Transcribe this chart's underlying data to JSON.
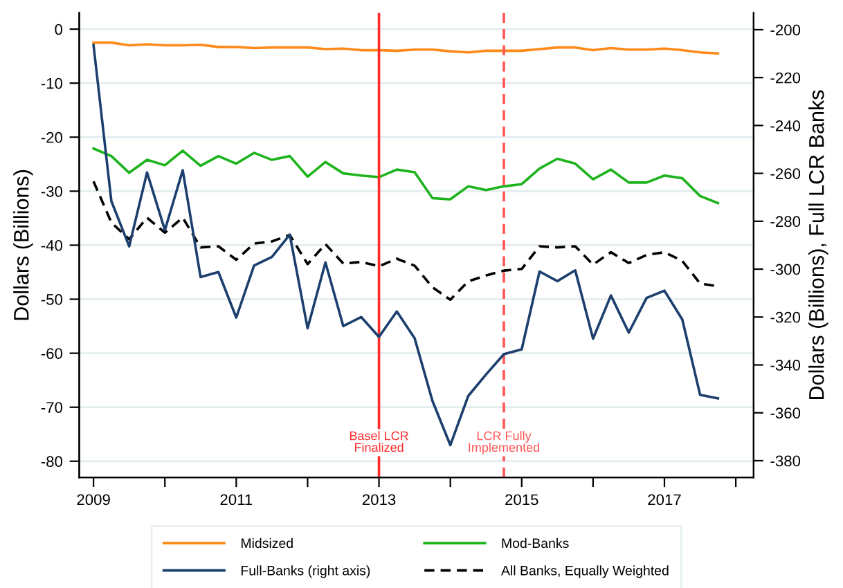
{
  "chart_data": {
    "type": "line",
    "ylabel": "Dollars (Billions)",
    "y2label": "Dollars (Billions), Full LCR Banks",
    "x": [
      2009,
      2009.25,
      2009.5,
      2009.75,
      2010,
      2010.25,
      2010.5,
      2010.75,
      2011,
      2011.25,
      2011.5,
      2011.75,
      2012,
      2012.25,
      2012.5,
      2012.75,
      2013,
      2013.25,
      2013.5,
      2013.75,
      2014,
      2014.25,
      2014.5,
      2014.75,
      2015,
      2015.25,
      2015.5,
      2015.75,
      2016,
      2016.25,
      2016.5,
      2016.75,
      2017,
      2017.25,
      2017.5,
      2017.75
    ],
    "series": [
      {
        "name": "Midsized",
        "color": "#ff8a1c",
        "line_style": "solid",
        "values": [
          -2.5,
          -2.5,
          -3,
          -2.8,
          -3,
          -3,
          -2.9,
          -3.3,
          -3.3,
          -3.5,
          -3.4,
          -3.4,
          -3.4,
          -3.7,
          -3.6,
          -3.9,
          -3.9,
          -4.0,
          -3.8,
          -3.8,
          -4.1,
          -4.3,
          -4.0,
          -4.0,
          -4.0,
          -3.7,
          -3.4,
          -3.4,
          -3.9,
          -3.5,
          -3.8,
          -3.8,
          -3.6,
          -3.9,
          -4.3,
          -4.5
        ]
      },
      {
        "name": "Mod-Banks",
        "color": "#1db31d",
        "line_style": "solid",
        "values": [
          -22.1,
          -23.5,
          -26.6,
          -24.2,
          -25.2,
          -22.5,
          -25.3,
          -23.5,
          -24.9,
          -22.9,
          -24.2,
          -23.5,
          -27.3,
          -24.6,
          -26.7,
          -27.1,
          -27.4,
          -26.0,
          -26.5,
          -31.3,
          -31.5,
          -29.1,
          -29.8,
          -29.1,
          -28.7,
          -25.8,
          -24.0,
          -24.9,
          -27.8,
          -26.0,
          -28.4,
          -28.4,
          -27.1,
          -27.6,
          -30.9,
          -32.2
        ]
      },
      {
        "name": "Full-Banks (right axis)",
        "color": "#1c3f6e",
        "line_style": "solid",
        "axis": "y2",
        "values": [
          -206.4,
          -271.6,
          -290.5,
          -259.6,
          -283.7,
          -258.7,
          -303.3,
          -301.2,
          -320.2,
          -298.5,
          -294.9,
          -285.6,
          -324.7,
          -297.2,
          -323.8,
          -320.0,
          -328.3,
          -317.7,
          -328.9,
          -355.1,
          -373.5,
          -353,
          -344,
          -335.5,
          -333.5,
          -301,
          -305,
          -300.5,
          -329,
          -311,
          -326.5,
          -312,
          -309,
          -321,
          -352.5,
          -354
        ]
      },
      {
        "name": "All Banks, Equally Weighted",
        "color": "#000000",
        "line_style": "dashed",
        "values": [
          -28.2,
          -35.8,
          -38.9,
          -34.9,
          -37.7,
          -34.9,
          -40.4,
          -40.2,
          -42.7,
          -39.7,
          -39.3,
          -38.1,
          -43.5,
          -39.8,
          -43.4,
          -43.1,
          -43.9,
          -42.5,
          -43.8,
          -47.8,
          -50.1,
          -46.7,
          -45.6,
          -44.7,
          -44.4,
          -40.2,
          -40.4,
          -40.2,
          -43.6,
          -41.3,
          -43.3,
          -41.8,
          -41.3,
          -42.9,
          -47.1,
          -47.6
        ]
      }
    ],
    "xlim": [
      2008.8,
      2018.25
    ],
    "xticks": [
      2009,
      {
        "value": 2010,
        "label": null
      },
      2011,
      {
        "value": 2012,
        "label": null
      },
      2013,
      {
        "value": 2014,
        "label": null
      },
      2015,
      {
        "value": 2016,
        "label": null
      },
      2017,
      {
        "value": 2018,
        "label": null
      }
    ],
    "ylim": [
      -83,
      3
    ],
    "yticks": [
      -80,
      -70,
      -60,
      -50,
      -40,
      -30,
      -20,
      -10,
      0
    ],
    "y2lim": [
      -387,
      -193
    ],
    "y2ticks": [
      -380,
      -360,
      -340,
      -320,
      -300,
      -280,
      -260,
      -240,
      -220,
      -200
    ],
    "ref_lines": [
      {
        "axis": "x",
        "value": 2013,
        "label": "Basel LCR\nFinalized",
        "color": "#ff2a2a",
        "line_style": "solid"
      },
      {
        "axis": "x",
        "value": 2014.75,
        "label": "LCR Fully\nImplemented",
        "color": "#ff5555",
        "line_style": "dashed"
      }
    ],
    "grid": "y",
    "legend": "bottom",
    "marker": "none"
  }
}
